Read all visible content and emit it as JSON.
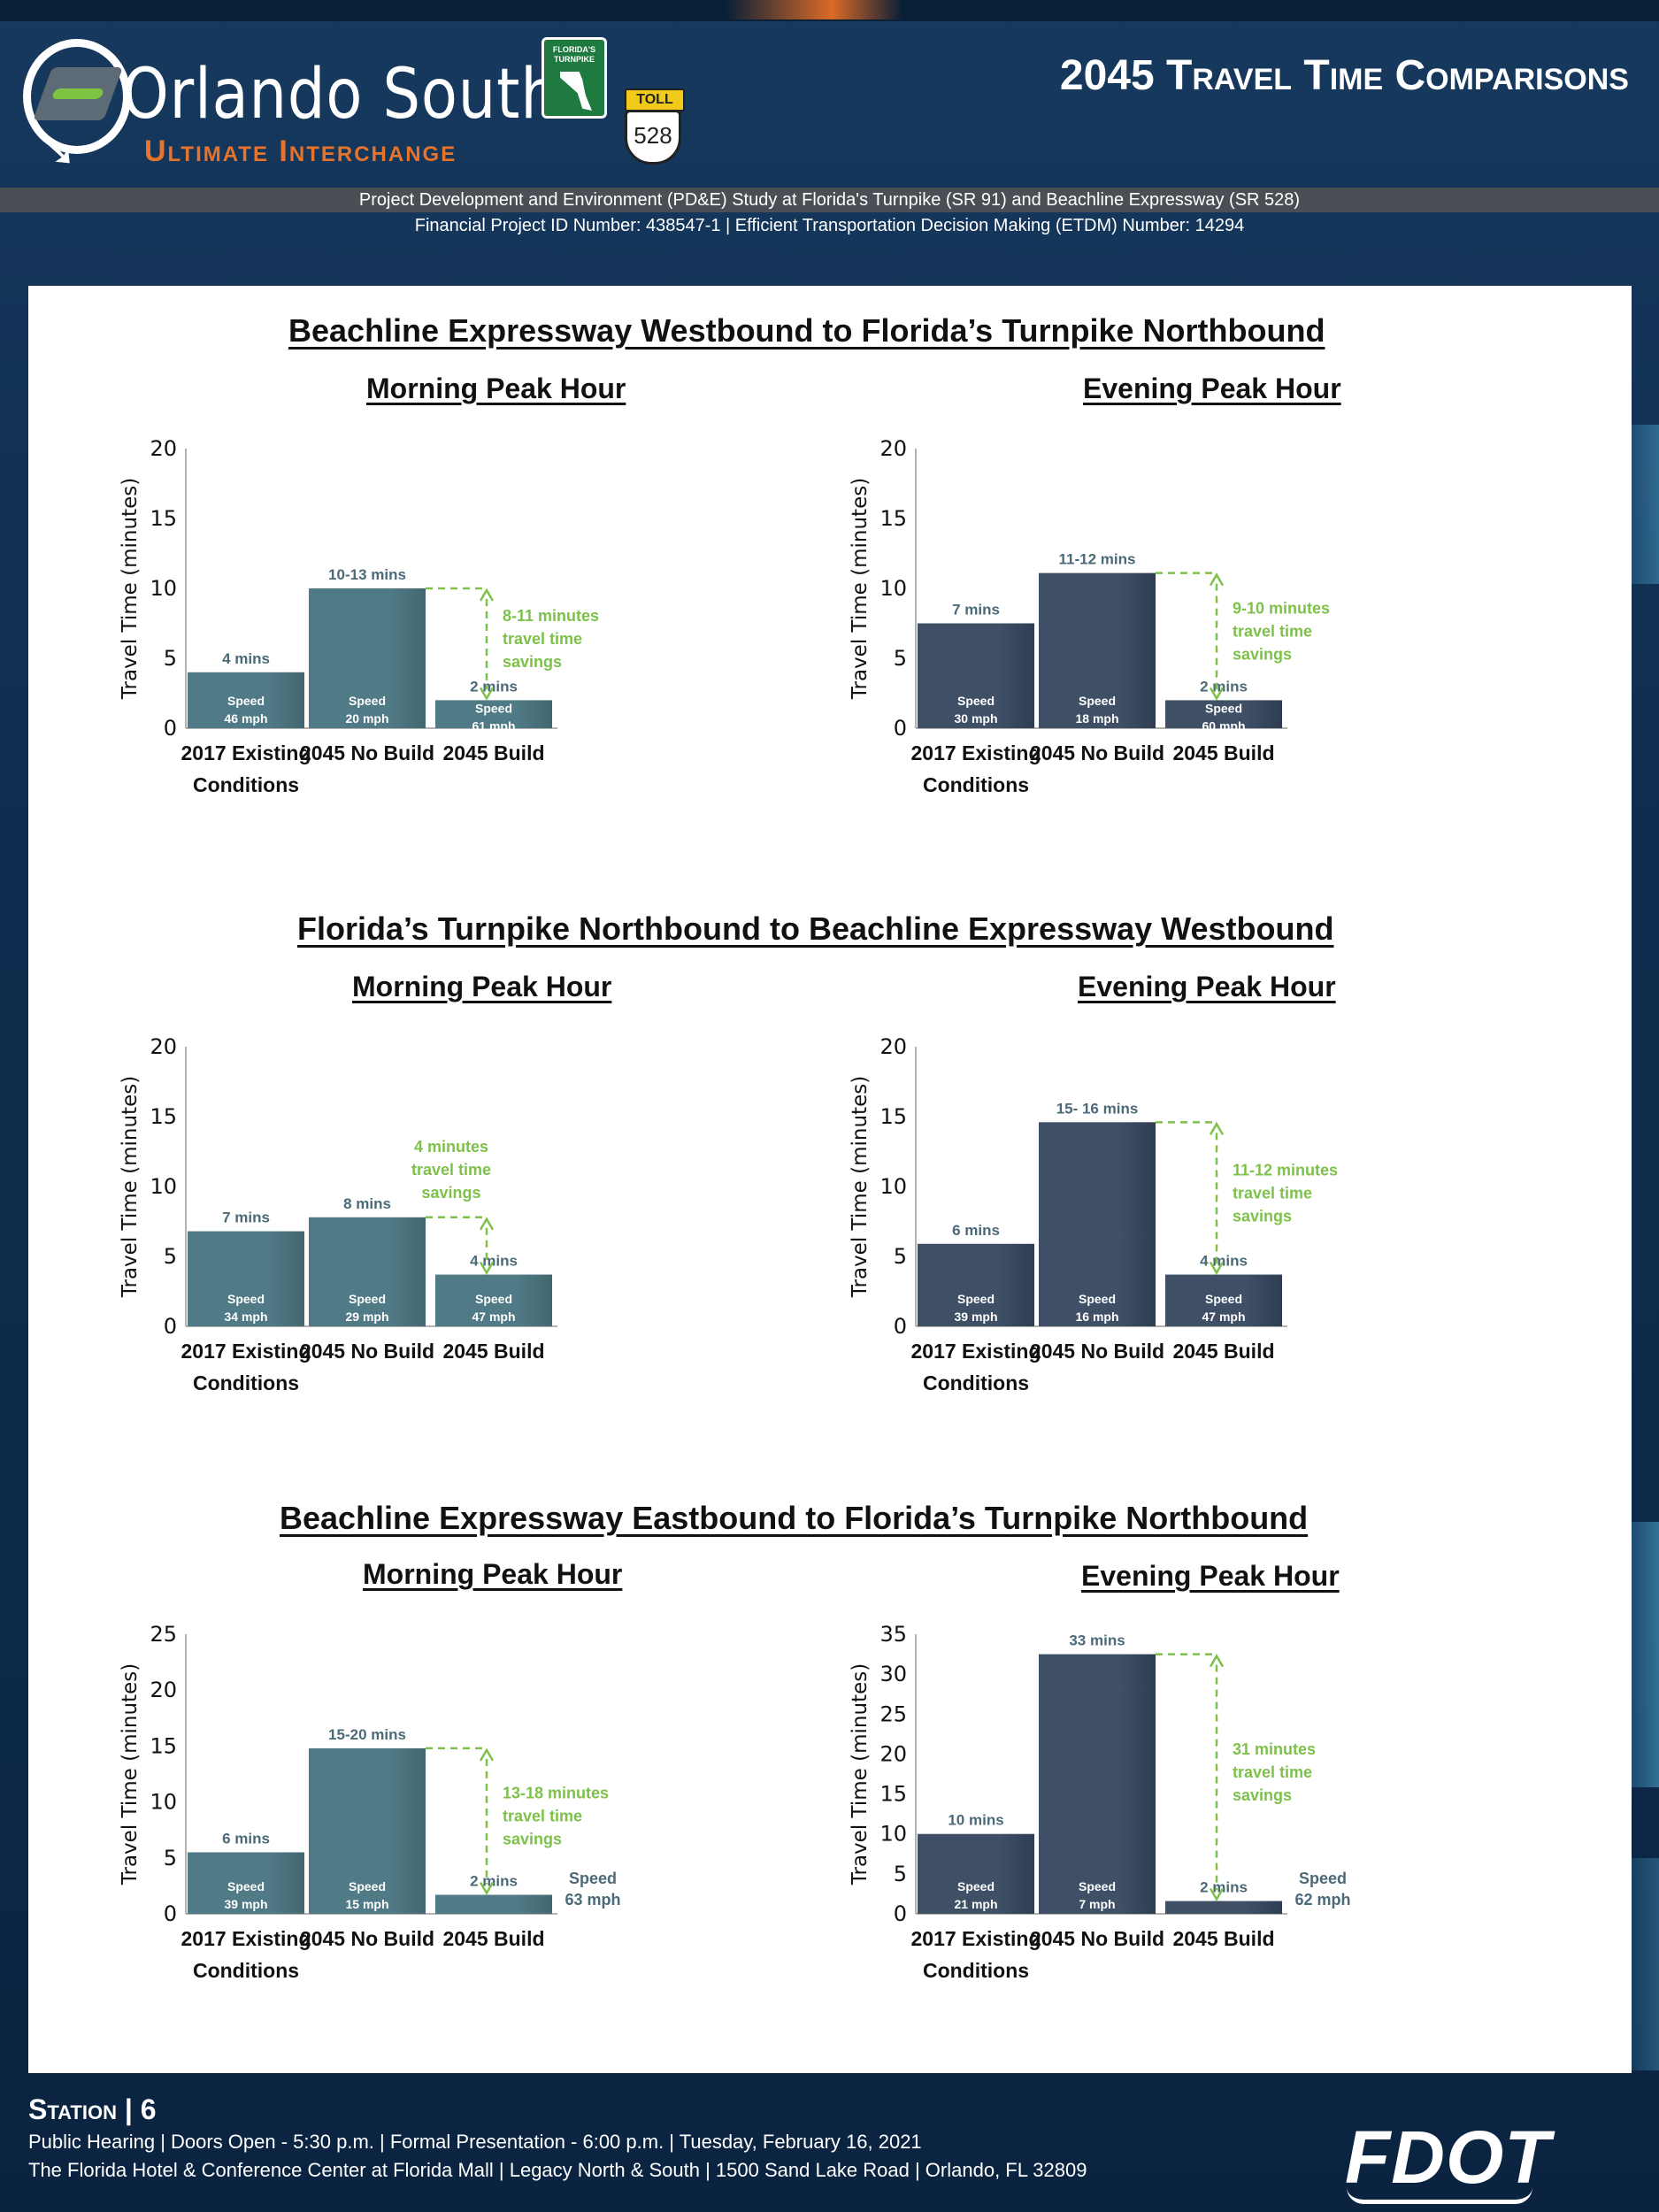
{
  "header": {
    "logo_name": "Orlando South",
    "logo_sub": "Ultimate Interchange",
    "turnpike_badge": "FLORIDA'S TURNPIKE",
    "toll_label": "TOLL",
    "route_number": "528",
    "page_title": "2045 Travel Time Comparisons",
    "study_line": "Project Development and Environment (PD&E) Study at Florida's Turnpike (SR 91) and Beachline Expressway (SR 528)",
    "project_line": "Financial Project ID Number: 438547-1 |  Efficient Transportation Decision Making (ETDM) Number: 14294"
  },
  "sections": [
    {
      "title": "Beachline Expressway Westbound to Florida’s Turnpike Northbound",
      "morning_label": "Morning Peak Hour",
      "evening_label": "Evening Peak Hour"
    },
    {
      "title": "Florida’s Turnpike Northbound to Beachline Expressway Westbound",
      "morning_label": "Morning Peak Hour",
      "evening_label": "Evening Peak Hour"
    },
    {
      "title": "Beachline Expressway Eastbound to Florida’s Turnpike Northbound",
      "morning_label": "Morning Peak Hour",
      "evening_label": "Evening Peak Hour"
    }
  ],
  "colors": {
    "morning_bar": "#507a86",
    "evening_bar": "#3e4f66",
    "savings": "#7dc14a",
    "label": "#4b6a78"
  },
  "chart_data": [
    {
      "type": "bar",
      "panel": "Beachline WB to Turnpike NB - Morning",
      "ylabel": "Travel Time (minutes)",
      "ylim": [
        0,
        20
      ],
      "yticks": [
        0,
        5,
        10,
        15,
        20
      ],
      "categories": [
        "2017 Existing Conditions",
        "2045 No Build",
        "2045 Build"
      ],
      "values": [
        4,
        10,
        2
      ],
      "value_labels": [
        "4 mins",
        "10-13 mins",
        "2 mins"
      ],
      "speeds": [
        "46 mph",
        "20 mph",
        "61 mph"
      ],
      "savings": "8-11 minutes travel time savings"
    },
    {
      "type": "bar",
      "panel": "Beachline WB to Turnpike NB - Evening",
      "ylabel": "Travel Time (minutes)",
      "ylim": [
        0,
        20
      ],
      "yticks": [
        0,
        5,
        10,
        15,
        20
      ],
      "categories": [
        "2017 Existing Conditions",
        "2045 No Build",
        "2045 Build"
      ],
      "values": [
        7.5,
        11.1,
        2
      ],
      "value_labels": [
        "7 mins",
        "11-12 mins",
        "2 mins"
      ],
      "speeds": [
        "30 mph",
        "18 mph",
        "60 mph"
      ],
      "savings": "9-10 minutes travel time savings"
    },
    {
      "type": "bar",
      "panel": "Turnpike NB to Beachline WB - Morning",
      "ylabel": "Travel Time (minutes)",
      "ylim": [
        0,
        20
      ],
      "yticks": [
        0,
        5,
        10,
        15,
        20
      ],
      "categories": [
        "2017 Existing Conditions",
        "2045 No Build",
        "2045 Build"
      ],
      "values": [
        6.8,
        7.8,
        3.7
      ],
      "value_labels": [
        "7 mins",
        "8 mins",
        "4 mins"
      ],
      "speeds": [
        "34 mph",
        "29 mph",
        "47 mph"
      ],
      "savings": "4 minutes travel time savings"
    },
    {
      "type": "bar",
      "panel": "Turnpike NB to Beachline WB - Evening",
      "ylabel": "Travel Time (minutes)",
      "ylim": [
        0,
        20
      ],
      "yticks": [
        0,
        5,
        10,
        15,
        20
      ],
      "categories": [
        "2017 Existing Conditions",
        "2045 No Build",
        "2045 Build"
      ],
      "values": [
        5.9,
        14.6,
        3.7
      ],
      "value_labels": [
        "6 mins",
        "15- 16 mins",
        "4 mins"
      ],
      "speeds": [
        "39 mph",
        "16 mph",
        "47 mph"
      ],
      "savings": "11-12 minutes travel time savings"
    },
    {
      "type": "bar",
      "panel": "Beachline EB to Turnpike NB - Morning",
      "ylabel": "Travel Time (minutes)",
      "ylim": [
        0,
        25
      ],
      "yticks": [
        0,
        5,
        10,
        15,
        20,
        25
      ],
      "categories": [
        "2017 Existing Conditions",
        "2045 No Build",
        "2045 Build"
      ],
      "values": [
        5.5,
        14.8,
        1.7
      ],
      "value_labels": [
        "6 mins",
        "15-20 mins",
        "2 mins"
      ],
      "speeds": [
        "39 mph",
        "15 mph",
        "63 mph"
      ],
      "savings": "13-18 minutes travel time savings"
    },
    {
      "type": "bar",
      "panel": "Beachline EB to Turnpike NB - Evening",
      "ylabel": "Travel Time (minutes)",
      "ylim": [
        0,
        35
      ],
      "yticks": [
        0,
        5,
        10,
        15,
        20,
        25,
        30,
        35
      ],
      "categories": [
        "2017 Existing Conditions",
        "2045 No Build",
        "2045 Build"
      ],
      "values": [
        10,
        32.5,
        1.6
      ],
      "value_labels": [
        "10 mins",
        "33  mins",
        "2 mins"
      ],
      "speeds": [
        "21 mph",
        "7 mph",
        "62 mph"
      ],
      "savings": "31 minutes travel time savings"
    }
  ],
  "common": {
    "speed_label": "Speed"
  },
  "footer": {
    "station_label": "Station | 6",
    "event_line": "Public Hearing | Doors Open - 5:30 p.m. | Formal Presentation - 6:00 p.m. | Tuesday, February 16, 2021",
    "venue_line": "The Florida Hotel & Conference Center at Florida Mall | Legacy North & South | 1500 Sand Lake Road | Orlando, FL 32809",
    "fdot_logo": "FDOT"
  }
}
